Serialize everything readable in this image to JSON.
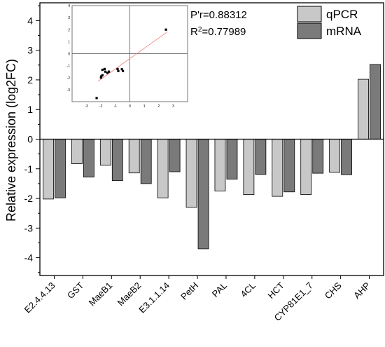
{
  "chart_data": [
    {
      "type": "bar",
      "ylabel": "Relative expression (log2FC)",
      "categories": [
        "E2.4.4.13",
        "GST",
        "MaeB1",
        "MaeB2",
        "E3.1.1.14",
        "PetH",
        "PAL",
        "4CL",
        "HCT",
        "CYP81E1_7",
        "CHS",
        "AHP"
      ],
      "series": [
        {
          "name": "qPCR",
          "color": "#c8c8c8",
          "values": [
            -2.02,
            -0.83,
            -0.88,
            -1.14,
            -1.98,
            -2.3,
            -1.75,
            -1.87,
            -1.93,
            -1.87,
            -1.12,
            2.02
          ]
        },
        {
          "name": "mRNA",
          "color": "#7a7a7a",
          "values": [
            -1.98,
            -1.28,
            -1.4,
            -1.5,
            -1.1,
            -3.7,
            -1.35,
            -1.19,
            -1.78,
            -1.15,
            -1.2,
            2.52
          ]
        }
      ],
      "ylim": [
        -4.6,
        4.6
      ],
      "yticks": [
        -4,
        -3,
        -2,
        -1,
        0,
        1,
        2,
        3,
        4
      ],
      "legend": "top-right"
    },
    {
      "type": "scatter",
      "annotations": [
        "P'r=0.88312",
        "R²=0.77989"
      ],
      "xlim": [
        -4,
        4
      ],
      "ylim": [
        -4,
        4
      ],
      "xticks": [
        -3,
        -2,
        -1,
        0,
        1,
        2,
        3
      ],
      "yticks": [
        -3,
        -2,
        -1,
        0,
        1,
        2,
        3,
        4
      ],
      "trendline_color": "#f08080",
      "points": [
        {
          "x": 2.5,
          "y": 2.0
        },
        {
          "x": -2.3,
          "y": -3.7
        },
        {
          "x": -2.0,
          "y": -2.0
        },
        {
          "x": -1.9,
          "y": -1.35
        },
        {
          "x": -1.75,
          "y": -1.28
        },
        {
          "x": -1.7,
          "y": -1.5
        },
        {
          "x": -1.55,
          "y": -1.6
        },
        {
          "x": -1.9,
          "y": -1.8
        },
        {
          "x": -1.98,
          "y": -1.9
        },
        {
          "x": -0.85,
          "y": -1.28
        },
        {
          "x": -0.8,
          "y": -1.45
        },
        {
          "x": -0.55,
          "y": -1.3
        },
        {
          "x": -0.48,
          "y": -1.45
        },
        {
          "x": -1.45,
          "y": -1.5
        }
      ]
    }
  ]
}
